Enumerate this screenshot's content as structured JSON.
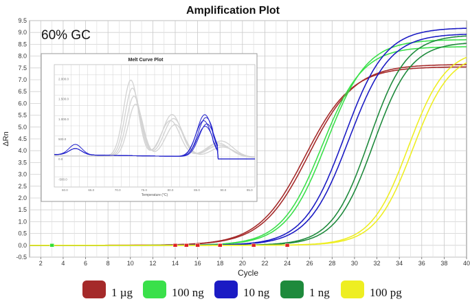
{
  "chart_data": {
    "type": "line",
    "title": "Amplification Plot",
    "annotation": "60% GC",
    "xlabel": "Cycle",
    "ylabel": "ΔRn",
    "xlim": [
      1,
      40
    ],
    "ylim": [
      -0.5,
      9.5
    ],
    "x_ticks": [
      "2",
      "4",
      "6",
      "8",
      "10",
      "12",
      "14",
      "16",
      "18",
      "20",
      "22",
      "24",
      "26",
      "28",
      "30",
      "32",
      "34",
      "36",
      "38",
      "40"
    ],
    "y_ticks": [
      "-0.5",
      "0.0",
      "0.5",
      "1.0",
      "1.5",
      "2.0",
      "2.5",
      "3.0",
      "3.5",
      "4.0",
      "4.5",
      "5.0",
      "5.5",
      "6.0",
      "6.5",
      "7.0",
      "7.5",
      "8.0",
      "8.5",
      "9.0",
      "9.5"
    ],
    "grid": true,
    "series": [
      {
        "name": "1 µg",
        "color": "#a52a2a",
        "replicates": [
          {
            "midpoint": 25.6,
            "slope": 0.48,
            "plateau": 7.55
          },
          {
            "midpoint": 25.9,
            "slope": 0.48,
            "plateau": 7.65
          }
        ]
      },
      {
        "name": "100 ng",
        "color": "#3ae04a",
        "replicates": [
          {
            "midpoint": 27.1,
            "slope": 0.55,
            "plateau": 8.4
          },
          {
            "midpoint": 27.5,
            "slope": 0.55,
            "plateau": 8.7
          }
        ]
      },
      {
        "name": "10 ng",
        "color": "#1b1bc4",
        "replicates": [
          {
            "midpoint": 29.1,
            "slope": 0.55,
            "plateau": 9.2
          },
          {
            "midpoint": 29.5,
            "slope": 0.55,
            "plateau": 8.95
          }
        ]
      },
      {
        "name": "1 ng",
        "color": "#1e8a3c",
        "replicates": [
          {
            "midpoint": 31.3,
            "slope": 0.6,
            "plateau": 8.9
          },
          {
            "midpoint": 31.7,
            "slope": 0.6,
            "plateau": 8.6
          }
        ]
      },
      {
        "name": "100 pg",
        "color": "#eeee22",
        "replicates": [
          {
            "midpoint": 34.8,
            "slope": 0.6,
            "plateau": 8.3
          },
          {
            "midpoint": 35.2,
            "slope": 0.6,
            "plateau": 8.15
          }
        ]
      }
    ],
    "ct_markers": [
      {
        "cycle": 3,
        "color": "#33dd33"
      },
      {
        "cycle": 14,
        "color": "#dd2222"
      },
      {
        "cycle": 15,
        "color": "#dd2222"
      },
      {
        "cycle": 16,
        "color": "#dd2222"
      },
      {
        "cycle": 18,
        "color": "#dd2222"
      },
      {
        "cycle": 21,
        "color": "#dd2222"
      },
      {
        "cycle": 24,
        "color": "#dd2222"
      }
    ],
    "inset": {
      "title": "Melt Curve Plot",
      "xlabel": "Temperature (°C)",
      "x_ticks": [
        "60.0",
        "65.0",
        "70.0",
        "75.0",
        "80.0",
        "85.0",
        "90.0",
        "95.0"
      ],
      "y_ticks": [
        "2.000.0",
        "1.500.0",
        "1.000.0",
        "500.0",
        "0.0",
        "-500.0"
      ],
      "blue_peak_temp": 86.5,
      "gray_peak_temps": [
        72.5,
        80.0,
        89.0
      ]
    },
    "legend": [
      {
        "label": "1 µg",
        "color": "#a52a2a"
      },
      {
        "label": "100 ng",
        "color": "#3ae04a"
      },
      {
        "label": "10 ng",
        "color": "#1b1bc4"
      },
      {
        "label": "1 ng",
        "color": "#1e8a3c"
      },
      {
        "label": "100 pg",
        "color": "#eeee22"
      }
    ]
  }
}
